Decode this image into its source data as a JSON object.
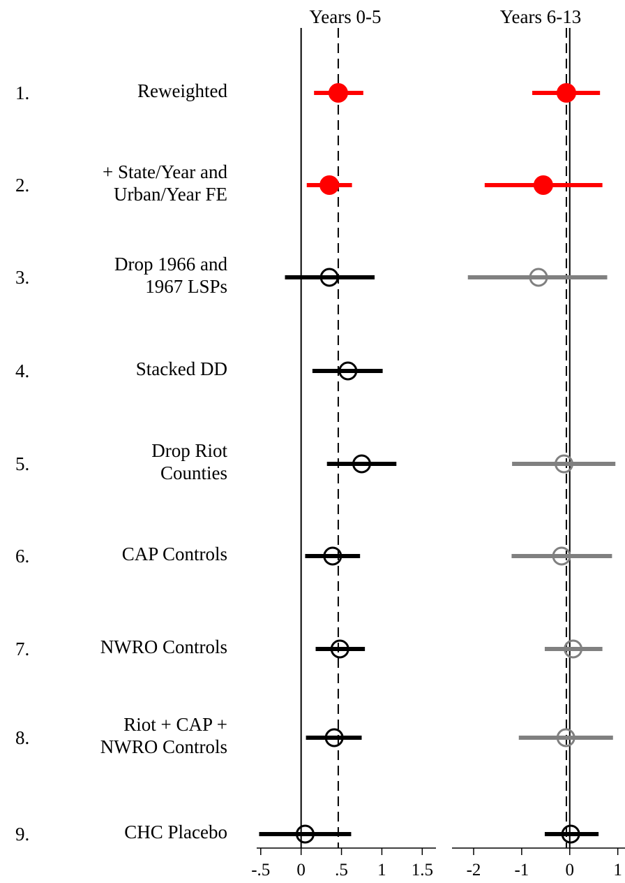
{
  "chart_data": {
    "type": "scatter",
    "description_kind": "coefficient plot with 95% confidence intervals",
    "rows": [
      {
        "number": "1.",
        "label_lines": [
          "Reweighted"
        ]
      },
      {
        "number": "2.",
        "label_lines": [
          "+ State/Year and",
          "Urban/Year FE"
        ]
      },
      {
        "number": "3.",
        "label_lines": [
          "Drop 1966 and",
          "1967 LSPs"
        ]
      },
      {
        "number": "4.",
        "label_lines": [
          "Stacked DD"
        ]
      },
      {
        "number": "5.",
        "label_lines": [
          "Drop Riot",
          "Counties"
        ]
      },
      {
        "number": "6.",
        "label_lines": [
          "CAP Controls"
        ]
      },
      {
        "number": "7.",
        "label_lines": [
          "NWRO Controls"
        ]
      },
      {
        "number": "8.",
        "label_lines": [
          "Riot + CAP +",
          "NWRO Controls"
        ]
      },
      {
        "number": "9.",
        "label_lines": [
          "CHC Placebo"
        ]
      }
    ],
    "panels": [
      {
        "title": "Years 0-5",
        "xlim": [
          -0.55,
          1.67
        ],
        "ticks": [
          -0.5,
          0,
          0.5,
          1,
          1.5
        ],
        "tick_labels": [
          "-.5",
          "0",
          ".5",
          "1",
          "1.5"
        ],
        "reference_line": 0.46,
        "estimates": [
          {
            "row": 0,
            "est": 0.46,
            "lo": 0.16,
            "hi": 0.77,
            "style": "red-filled"
          },
          {
            "row": 1,
            "est": 0.35,
            "lo": 0.07,
            "hi": 0.63,
            "style": "red-filled"
          },
          {
            "row": 2,
            "est": 0.35,
            "lo": -0.2,
            "hi": 0.91,
            "style": "black-hollow"
          },
          {
            "row": 3,
            "est": 0.58,
            "lo": 0.14,
            "hi": 1.01,
            "style": "black-hollow"
          },
          {
            "row": 4,
            "est": 0.75,
            "lo": 0.32,
            "hi": 1.18,
            "style": "black-hollow"
          },
          {
            "row": 5,
            "est": 0.39,
            "lo": 0.05,
            "hi": 0.73,
            "style": "black-hollow"
          },
          {
            "row": 6,
            "est": 0.48,
            "lo": 0.18,
            "hi": 0.79,
            "style": "black-hollow"
          },
          {
            "row": 7,
            "est": 0.41,
            "lo": 0.06,
            "hi": 0.75,
            "style": "black-hollow"
          },
          {
            "row": 8,
            "est": 0.05,
            "lo": -0.52,
            "hi": 0.62,
            "style": "black-hollow"
          }
        ]
      },
      {
        "title": "Years 6-13",
        "xlim": [
          -2.45,
          1.15
        ],
        "ticks": [
          -2,
          -1,
          0,
          1
        ],
        "tick_labels": [
          "-2",
          "-1",
          "0",
          "1"
        ],
        "reference_line": -0.07,
        "estimates": [
          {
            "row": 0,
            "est": -0.07,
            "lo": -0.78,
            "hi": 0.63,
            "style": "red-filled"
          },
          {
            "row": 1,
            "est": -0.55,
            "lo": -1.77,
            "hi": 0.68,
            "style": "red-filled"
          },
          {
            "row": 2,
            "est": -0.65,
            "lo": -2.12,
            "hi": 0.78,
            "style": "gray-hollow"
          },
          {
            "row": 3,
            "est": null,
            "lo": null,
            "hi": null,
            "style": "none"
          },
          {
            "row": 4,
            "est": -0.12,
            "lo": -1.2,
            "hi": 0.95,
            "style": "gray-hollow"
          },
          {
            "row": 5,
            "est": -0.17,
            "lo": -1.21,
            "hi": 0.88,
            "style": "gray-hollow"
          },
          {
            "row": 6,
            "est": 0.07,
            "lo": -0.52,
            "hi": 0.68,
            "style": "gray-hollow"
          },
          {
            "row": 7,
            "est": -0.08,
            "lo": -1.06,
            "hi": 0.9,
            "style": "gray-hollow"
          },
          {
            "row": 8,
            "est": 0.02,
            "lo": -0.52,
            "hi": 0.6,
            "style": "black-hollow"
          }
        ]
      }
    ],
    "colors": {
      "red": "#ff0000",
      "black": "#000000",
      "gray": "#808080"
    }
  }
}
